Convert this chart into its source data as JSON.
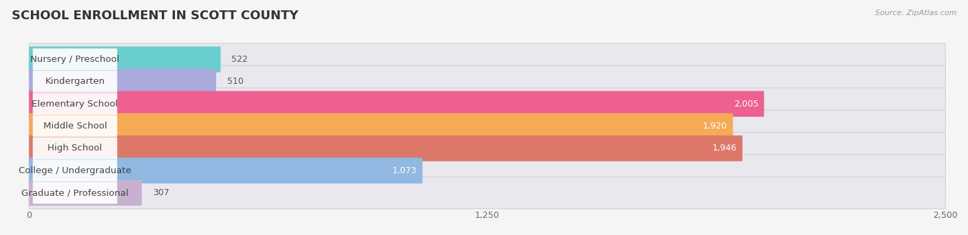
{
  "title": "SCHOOL ENROLLMENT IN SCOTT COUNTY",
  "source": "Source: ZipAtlas.com",
  "categories": [
    "Nursery / Preschool",
    "Kindergarten",
    "Elementary School",
    "Middle School",
    "High School",
    "College / Undergraduate",
    "Graduate / Professional"
  ],
  "values": [
    522,
    510,
    2005,
    1920,
    1946,
    1073,
    307
  ],
  "bar_colors": [
    "#68cece",
    "#aaaadd",
    "#ee6090",
    "#f5aa55",
    "#dd7868",
    "#90b8e0",
    "#c8b0d0"
  ],
  "bar_bg_color": "#e8e8ee",
  "bar_bg_border": "#d0d0d8",
  "xlim": [
    0,
    2500
  ],
  "xticks": [
    0,
    1250,
    2500
  ],
  "value_color_dark": "#555555",
  "value_color_light": "#ffffff",
  "label_fontsize": 9.5,
  "value_fontsize": 9,
  "title_fontsize": 13,
  "source_fontsize": 8,
  "background_color": "#f5f5f5"
}
